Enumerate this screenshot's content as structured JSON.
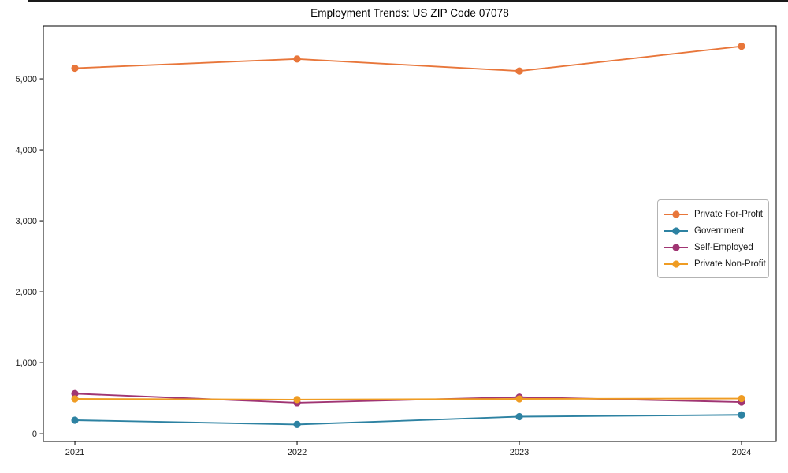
{
  "window": {
    "top_edge": true
  },
  "chart_data": {
    "type": "line",
    "title": "Employment Trends: US ZIP Code 07078",
    "xlabel": "",
    "ylabel": "",
    "x": [
      2021,
      2022,
      2023,
      2024
    ],
    "x_tick_labels": [
      "2021",
      "2022",
      "2023",
      "2024"
    ],
    "y_ticks": [
      0,
      1000,
      2000,
      3000,
      4000,
      5000
    ],
    "y_tick_labels": [
      "0",
      "1,000",
      "2,000",
      "3,000",
      "4,000",
      "5,000"
    ],
    "xlim": [
      2020.858,
      2024.156
    ],
    "ylim": [
      -110,
      5745
    ],
    "grid": false,
    "legend_position": "center-right",
    "marker": "circle",
    "series": [
      {
        "name": "Private For-Profit",
        "color": "#e8763a",
        "values": [
          5150,
          5280,
          5110,
          5460
        ]
      },
      {
        "name": "Government",
        "color": "#2d82a2",
        "values": [
          190,
          130,
          240,
          265
        ]
      },
      {
        "name": "Self-Employed",
        "color": "#a03573",
        "values": [
          565,
          435,
          515,
          445
        ]
      },
      {
        "name": "Private Non-Profit",
        "color": "#ef9c23",
        "values": [
          490,
          480,
          490,
          495
        ]
      }
    ],
    "axis_color": "#000000",
    "tick_label_color": "#1a1a1a"
  }
}
